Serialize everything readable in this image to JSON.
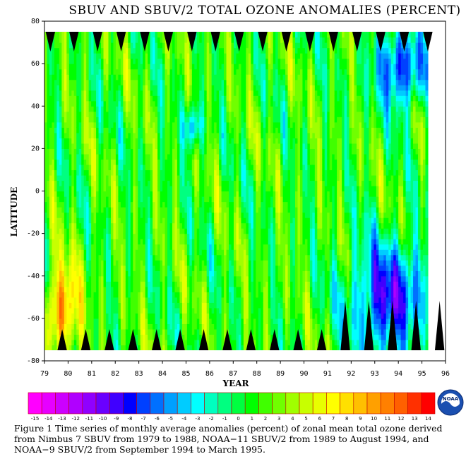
{
  "chart_data": {
    "type": "heatmap",
    "title": "SBUV AND SBUV/2 TOTAL OZONE ANOMALIES (PERCENT)",
    "xlabel": "YEAR",
    "ylabel": "LATITUDE",
    "xlim": [
      79,
      96
    ],
    "ylim": [
      -80,
      80
    ],
    "x_ticks": [
      "79",
      "80",
      "81",
      "82",
      "83",
      "84",
      "85",
      "86",
      "87",
      "88",
      "89",
      "90",
      "91",
      "92",
      "93",
      "94",
      "95",
      "96"
    ],
    "y_ticks": [
      "80",
      "60",
      "40",
      "20",
      "0",
      "-20",
      "-40",
      "-60",
      "-80"
    ],
    "data_extent": {
      "years": [
        79,
        95.25
      ],
      "latitudes": [
        -75,
        75
      ]
    },
    "colorbar": {
      "label_values": [
        "-15",
        "-14",
        "-13",
        "-12",
        "-11",
        "-10",
        "-9",
        "-8",
        "-7",
        "-6",
        "-5",
        "-4",
        "-3",
        "-2",
        "-1",
        "0",
        "1",
        "2",
        "3",
        "4",
        "5",
        "6",
        "7",
        "8",
        "9",
        "10",
        "11",
        "12",
        "13",
        "14"
      ],
      "colors": [
        "#ff00ff",
        "#e600ff",
        "#cc00ff",
        "#b000ff",
        "#9000ff",
        "#6a00ff",
        "#4000ff",
        "#0000ff",
        "#0040ff",
        "#0070ff",
        "#00a0ff",
        "#00ccff",
        "#00ffff",
        "#00ffc0",
        "#00ff80",
        "#00ff40",
        "#00ff00",
        "#40ff00",
        "#70ff00",
        "#a0ff00",
        "#c8ff00",
        "#e8ff00",
        "#ffff00",
        "#ffe000",
        "#ffc000",
        "#ffa000",
        "#ff8000",
        "#ff6000",
        "#ff3000",
        "#ff0000"
      ]
    },
    "missing_data_color": "#000000",
    "features": [
      {
        "label": "positive anomalies",
        "years": [
          79,
          80.5
        ],
        "lat": [
          -75,
          -35
        ],
        "value": 9
      },
      {
        "label": "negative anomalies",
        "years": [
          92,
          95.25
        ],
        "lat": [
          -75,
          -25
        ],
        "value": -10
      },
      {
        "label": "negative anomalies",
        "years": [
          93,
          95.25
        ],
        "lat": [
          40,
          75
        ],
        "value": -9
      },
      {
        "label": "negative anomaly",
        "years": [
          85,
          85.5
        ],
        "lat": [
          20,
          40
        ],
        "value": -7
      }
    ]
  },
  "caption": "Figure 1    Time series of monthly average anomalies (percent) of zonal mean total ozone derived from Nimbus 7 SBUV from 1979 to 1988, NOAA−11 SBUV/2 from 1989 to August 1994, and NOAA−9 SBUV/2 from September 1994 to March 1995.",
  "logo": {
    "text": "NOAA"
  }
}
